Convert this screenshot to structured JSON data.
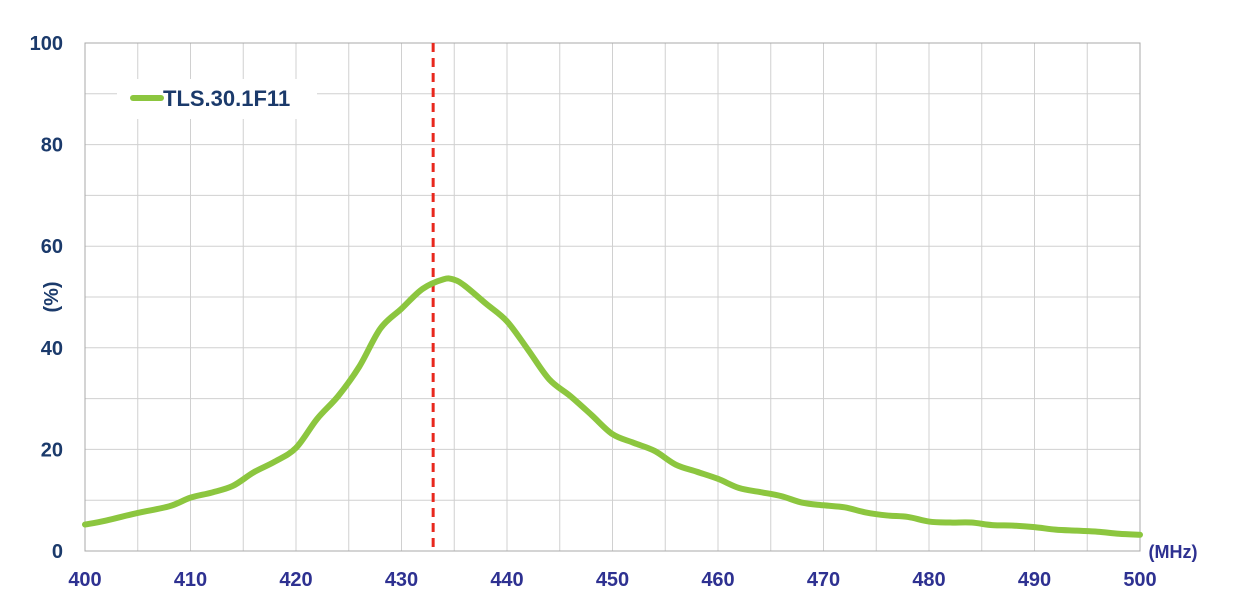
{
  "chart_data": {
    "type": "line",
    "title": "",
    "xlabel": "",
    "ylabel": "(%)",
    "x_unit": "(MHz)",
    "xlim": [
      400,
      500
    ],
    "ylim": [
      0,
      100
    ],
    "x_ticks": [
      "400",
      "410",
      "420",
      "430",
      "440",
      "450",
      "460",
      "470",
      "480",
      "490",
      "500"
    ],
    "y_ticks": [
      "0",
      "20",
      "40",
      "60",
      "80",
      "100"
    ],
    "grid": true,
    "legend_position": "top-left",
    "colors": {
      "series": "#8cc63f",
      "marker_line": "#e8281e",
      "tick_x": "#2e3191",
      "tick_y": "#1b3a6b",
      "grid": "#d0d0d0"
    },
    "reference_line": {
      "x": 433,
      "style": "dashed"
    },
    "series": [
      {
        "name": "TLS.30.1F11",
        "x": [
          400,
          402,
          405,
          408,
          410,
          412,
          414,
          416,
          418,
          420,
          422,
          424,
          426,
          428,
          430,
          432,
          434,
          435,
          436,
          438,
          440,
          442,
          444,
          446,
          448,
          450,
          452,
          454,
          456,
          458,
          460,
          462,
          464,
          466,
          468,
          470,
          472,
          474,
          476,
          478,
          480,
          482,
          484,
          486,
          488,
          490,
          492,
          494,
          496,
          498,
          500
        ],
        "y": [
          5.2,
          6.0,
          7.5,
          8.8,
          10.5,
          11.5,
          12.8,
          15.5,
          17.6,
          20.3,
          26.0,
          30.5,
          36.3,
          43.8,
          47.7,
          51.6,
          53.5,
          53.4,
          52.2,
          48.7,
          45.2,
          39.6,
          33.8,
          30.5,
          26.8,
          23.0,
          21.3,
          19.7,
          17.0,
          15.6,
          14.2,
          12.4,
          11.6,
          10.8,
          9.5,
          9.0,
          8.6,
          7.6,
          7.0,
          6.7,
          5.8,
          5.6,
          5.6,
          5.1,
          5.0,
          4.7,
          4.2,
          4.0,
          3.8,
          3.4,
          3.2
        ]
      }
    ]
  }
}
